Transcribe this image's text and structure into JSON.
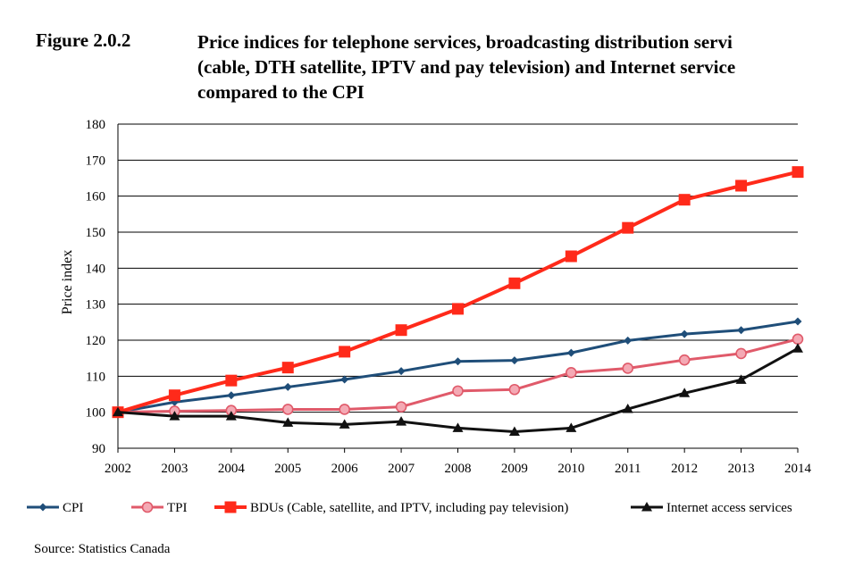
{
  "figure": {
    "label": "Figure 2.0.2",
    "title_lines": [
      "Price indices for telephone services, broadcasting distribution servi",
      "(cable, DTH satellite, IPTV and pay television) and Internet service",
      "compared to the CPI"
    ]
  },
  "source": "Source: Statistics Canada",
  "chart_data": {
    "type": "line",
    "title": "Price indices for telephone services, broadcasting distribution servi (cable, DTH satellite, IPTV and pay television) and Internet service compared to the CPI",
    "xlabel": "",
    "ylabel": "Price index",
    "x": [
      "2002",
      "2003",
      "2004",
      "2005",
      "2006",
      "2007",
      "2008",
      "2009",
      "2010",
      "2011",
      "2012",
      "2013",
      "2014"
    ],
    "ylim": [
      90,
      180
    ],
    "yticks": [
      90,
      100,
      110,
      120,
      130,
      140,
      150,
      160,
      170,
      180
    ],
    "grid": "horizontal",
    "legend_position": "bottom",
    "series": [
      {
        "name": "CPI",
        "color": "#1f4e79",
        "marker": "diamond",
        "values": [
          100,
          102.8,
          104.7,
          107.0,
          109.1,
          111.4,
          114.1,
          114.4,
          116.5,
          119.9,
          121.7,
          122.8,
          125.2
        ]
      },
      {
        "name": "TPI",
        "color": "#e05a6a",
        "marker": "circle",
        "values": [
          100,
          100.3,
          100.5,
          100.8,
          100.8,
          101.5,
          105.9,
          106.3,
          111.0,
          112.2,
          114.5,
          116.3,
          120.3
        ]
      },
      {
        "name": "BDUs (Cable, satellite, and IPTV, including pay television)",
        "color": "#ff2a1a",
        "marker": "square",
        "values": [
          100,
          104.7,
          108.8,
          112.4,
          116.8,
          122.8,
          128.7,
          135.8,
          143.3,
          151.2,
          159.0,
          162.9,
          166.7
        ]
      },
      {
        "name": "Internet access services",
        "color": "#111111",
        "marker": "triangle",
        "values": [
          100,
          98.9,
          98.9,
          97.1,
          96.6,
          97.4,
          95.6,
          94.6,
          95.6,
          100.9,
          105.3,
          109.0,
          117.7
        ]
      }
    ]
  }
}
